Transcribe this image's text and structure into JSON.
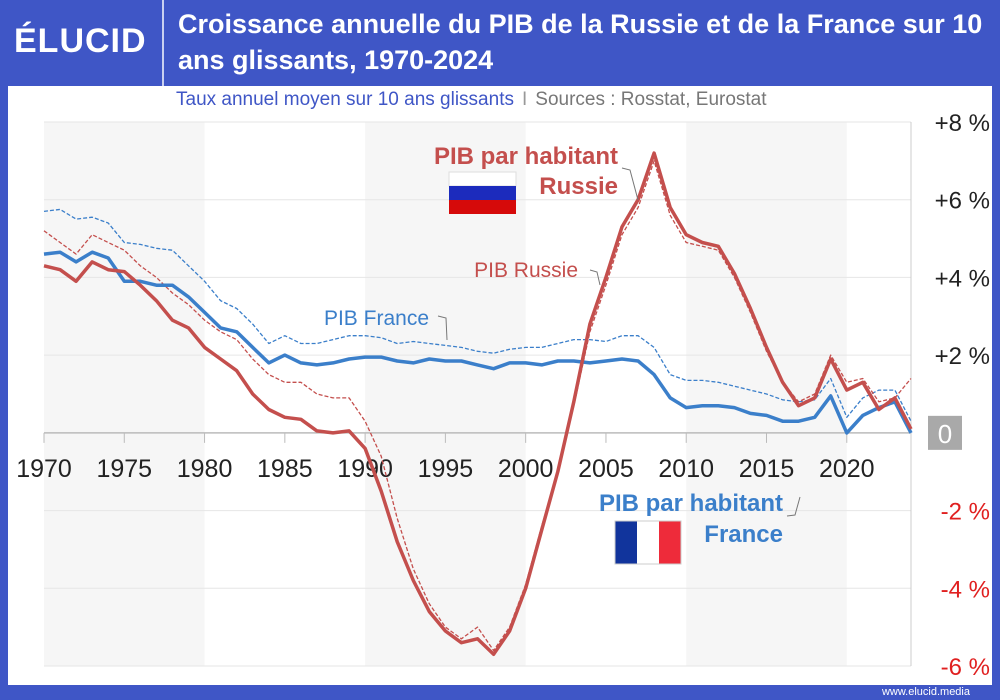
{
  "header": {
    "logo": "ÉLUCID",
    "title": "Croissance annuelle du PIB de la Russie et de la France sur 10 ans glissants, 1970-2024",
    "subtitle": "Taux annuel moyen sur 10 ans glissants",
    "separator": "I",
    "sources": "Sources : Rosstat, Eurostat"
  },
  "footer": {
    "url": "www.elucid.media"
  },
  "colors": {
    "frame": "#3f56c6",
    "russia": "#c44f4d",
    "france": "#3b7fca",
    "negative_tick": "#e02020"
  },
  "chart_data": {
    "type": "line",
    "xlim": [
      1970,
      2024
    ],
    "ylim": [
      -6,
      8
    ],
    "y_unit": "%",
    "grid": "horizontal",
    "x_ticks": [
      1970,
      1975,
      1980,
      1985,
      1990,
      1995,
      2000,
      2005,
      2010,
      2015,
      2020
    ],
    "y_ticks": [
      {
        "v": 8,
        "label": "+8 %"
      },
      {
        "v": 6,
        "label": "+6 %"
      },
      {
        "v": 4,
        "label": "+4 %"
      },
      {
        "v": 2,
        "label": "+2 %"
      },
      {
        "v": 0,
        "label": "0"
      },
      {
        "v": -2,
        "label": "-2 %"
      },
      {
        "v": -4,
        "label": "-4 %"
      },
      {
        "v": -6,
        "label": "-6 %"
      }
    ],
    "x": [
      1970,
      1971,
      1972,
      1973,
      1974,
      1975,
      1976,
      1977,
      1978,
      1979,
      1980,
      1981,
      1982,
      1983,
      1984,
      1985,
      1986,
      1987,
      1988,
      1989,
      1990,
      1991,
      1992,
      1993,
      1994,
      1995,
      1996,
      1997,
      1998,
      1999,
      2000,
      2001,
      2002,
      2003,
      2004,
      2005,
      2006,
      2007,
      2008,
      2009,
      2010,
      2011,
      2012,
      2013,
      2014,
      2015,
      2016,
      2017,
      2018,
      2019,
      2020,
      2021,
      2022,
      2023,
      2024
    ],
    "series": [
      {
        "name": "PIB France",
        "color": "#3b7fca",
        "style": "dashed",
        "values": [
          5.7,
          5.75,
          5.5,
          5.55,
          5.4,
          4.9,
          4.85,
          4.75,
          4.7,
          4.3,
          3.9,
          3.4,
          3.2,
          2.8,
          2.3,
          2.5,
          2.3,
          2.3,
          2.4,
          2.5,
          2.5,
          2.45,
          2.3,
          2.35,
          2.3,
          2.25,
          2.2,
          2.1,
          2.05,
          2.15,
          2.2,
          2.2,
          2.3,
          2.4,
          2.4,
          2.35,
          2.5,
          2.5,
          2.2,
          1.5,
          1.35,
          1.35,
          1.3,
          1.2,
          1.1,
          1.0,
          0.85,
          0.8,
          0.85,
          1.4,
          0.4,
          0.9,
          1.1,
          1.1,
          0.3
        ]
      },
      {
        "name": "PIB Russie",
        "color": "#c44f4d",
        "style": "dashed",
        "values": [
          5.2,
          4.9,
          4.6,
          5.1,
          4.9,
          4.7,
          4.3,
          4.0,
          3.6,
          3.3,
          2.9,
          2.6,
          2.4,
          1.9,
          1.5,
          1.3,
          1.3,
          1.0,
          0.9,
          0.9,
          0.3,
          -0.6,
          -2.2,
          -3.5,
          -4.4,
          -5.0,
          -5.3,
          -5.0,
          -5.6,
          -5.0,
          -3.9,
          -2.4,
          -1.0,
          0.7,
          2.6,
          3.8,
          5.1,
          5.8,
          7.0,
          5.6,
          4.9,
          4.8,
          4.7,
          4.0,
          3.1,
          2.1,
          1.3,
          0.8,
          1.0,
          2.0,
          1.3,
          1.4,
          0.8,
          0.9,
          1.4
        ]
      },
      {
        "name": "PIB par habitant France",
        "color": "#3b7fca",
        "style": "solid",
        "values": [
          4.6,
          4.65,
          4.4,
          4.65,
          4.5,
          3.9,
          3.9,
          3.8,
          3.8,
          3.5,
          3.1,
          2.7,
          2.6,
          2.2,
          1.8,
          2.0,
          1.8,
          1.75,
          1.8,
          1.9,
          1.95,
          1.95,
          1.85,
          1.8,
          1.9,
          1.85,
          1.85,
          1.75,
          1.65,
          1.8,
          1.8,
          1.75,
          1.85,
          1.85,
          1.8,
          1.85,
          1.9,
          1.85,
          1.5,
          0.9,
          0.65,
          0.7,
          0.7,
          0.65,
          0.5,
          0.45,
          0.3,
          0.3,
          0.4,
          0.95,
          0.0,
          0.45,
          0.65,
          0.8,
          0.0
        ]
      },
      {
        "name": "PIB par habitant Russie",
        "color": "#c44f4d",
        "style": "solid",
        "values": [
          4.3,
          4.2,
          3.9,
          4.4,
          4.2,
          4.15,
          3.8,
          3.4,
          2.9,
          2.7,
          2.2,
          1.9,
          1.6,
          1.0,
          0.6,
          0.4,
          0.35,
          0.05,
          0.0,
          0.05,
          -0.4,
          -1.5,
          -2.8,
          -3.8,
          -4.6,
          -5.1,
          -5.4,
          -5.3,
          -5.7,
          -5.1,
          -4.0,
          -2.5,
          -1.0,
          0.8,
          2.8,
          4.0,
          5.3,
          6.0,
          7.2,
          5.8,
          5.1,
          4.9,
          4.8,
          4.1,
          3.2,
          2.2,
          1.3,
          0.7,
          0.9,
          1.9,
          1.1,
          1.3,
          0.6,
          0.9,
          0.1
        ]
      }
    ],
    "annotations": {
      "russia_pc_line1": "PIB par habitant",
      "russia_pc_line2": "Russie",
      "russia_gdp": "PIB Russie",
      "france_gdp": "PIB France",
      "france_pc_line1": "PIB par habitant",
      "france_pc_line2": "France"
    }
  }
}
